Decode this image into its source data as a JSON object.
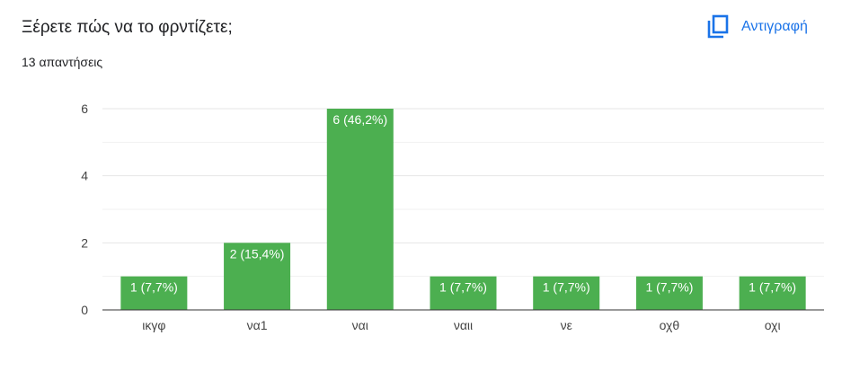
{
  "header": {
    "title": "Ξέρετε πώς να το φρντίζετε;",
    "response_count": "13 απαντήσεις",
    "copy_label": "Αντιγραφή",
    "copy_icon": "copy-icon"
  },
  "colors": {
    "bar": "#4caf50",
    "accent": "#1a73e8",
    "grid": "#e6e6e6",
    "baseline": "#333333"
  },
  "chart_data": {
    "type": "bar",
    "categories": [
      "ικγφ",
      "να1",
      "ναι",
      "ναιι",
      "νε",
      "οχθ",
      "οχι"
    ],
    "values": [
      1,
      2,
      6,
      1,
      1,
      1,
      1
    ],
    "data_labels": [
      "1 (7,7%)",
      "2 (15,4%)",
      "6 (46,2%)",
      "1 (7,7%)",
      "1 (7,7%)",
      "1 (7,7%)",
      "1 (7,7%)"
    ],
    "ylim": [
      0,
      6
    ],
    "yticks": [
      0,
      2,
      4,
      6
    ],
    "grid": true,
    "xlabel": "",
    "ylabel": ""
  }
}
